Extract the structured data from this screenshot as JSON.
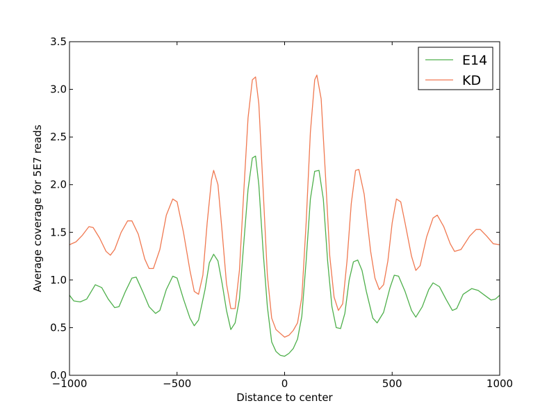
{
  "chart_data": {
    "type": "line",
    "xlabel": "Distance to center",
    "ylabel": "Average coverage for 5E7 reads",
    "xlim": [
      -1000,
      1000
    ],
    "ylim": [
      0,
      3.5
    ],
    "xticks": [
      -1000,
      -500,
      0,
      500,
      1000
    ],
    "xtick_labels": [
      "−1000",
      "−500",
      "0",
      "500",
      "1000"
    ],
    "yticks": [
      0,
      0.5,
      1,
      1.5,
      2,
      2.5,
      3,
      3.5
    ],
    "ytick_labels": [
      "0.0",
      "0.5",
      "1.0",
      "1.5",
      "2.0",
      "2.5",
      "3.0",
      "3.5"
    ],
    "grid": false,
    "legend": "top-right",
    "series": [
      {
        "name": "E14",
        "color": "#4daf4a",
        "points": [
          [
            -1000,
            0.84
          ],
          [
            -980,
            0.78
          ],
          [
            -950,
            0.77
          ],
          [
            -920,
            0.8
          ],
          [
            -880,
            0.95
          ],
          [
            -850,
            0.92
          ],
          [
            -820,
            0.8
          ],
          [
            -790,
            0.71
          ],
          [
            -770,
            0.72
          ],
          [
            -740,
            0.88
          ],
          [
            -710,
            1.02
          ],
          [
            -690,
            1.03
          ],
          [
            -660,
            0.88
          ],
          [
            -630,
            0.72
          ],
          [
            -600,
            0.65
          ],
          [
            -580,
            0.68
          ],
          [
            -550,
            0.9
          ],
          [
            -520,
            1.04
          ],
          [
            -500,
            1.02
          ],
          [
            -470,
            0.8
          ],
          [
            -440,
            0.6
          ],
          [
            -420,
            0.52
          ],
          [
            -400,
            0.58
          ],
          [
            -370,
            0.9
          ],
          [
            -350,
            1.18
          ],
          [
            -330,
            1.27
          ],
          [
            -310,
            1.2
          ],
          [
            -290,
            0.96
          ],
          [
            -270,
            0.68
          ],
          [
            -250,
            0.48
          ],
          [
            -230,
            0.55
          ],
          [
            -210,
            0.8
          ],
          [
            -190,
            1.38
          ],
          [
            -170,
            1.95
          ],
          [
            -150,
            2.28
          ],
          [
            -135,
            2.3
          ],
          [
            -120,
            2.0
          ],
          [
            -100,
            1.3
          ],
          [
            -80,
            0.72
          ],
          [
            -60,
            0.35
          ],
          [
            -40,
            0.25
          ],
          [
            -20,
            0.21
          ],
          [
            0,
            0.2
          ],
          [
            20,
            0.23
          ],
          [
            40,
            0.28
          ],
          [
            60,
            0.38
          ],
          [
            80,
            0.62
          ],
          [
            100,
            1.2
          ],
          [
            120,
            1.85
          ],
          [
            140,
            2.14
          ],
          [
            160,
            2.15
          ],
          [
            180,
            1.85
          ],
          [
            200,
            1.2
          ],
          [
            220,
            0.72
          ],
          [
            240,
            0.5
          ],
          [
            260,
            0.49
          ],
          [
            280,
            0.65
          ],
          [
            300,
            1.0
          ],
          [
            320,
            1.19
          ],
          [
            340,
            1.21
          ],
          [
            360,
            1.1
          ],
          [
            380,
            0.88
          ],
          [
            410,
            0.6
          ],
          [
            430,
            0.55
          ],
          [
            460,
            0.66
          ],
          [
            490,
            0.92
          ],
          [
            510,
            1.05
          ],
          [
            530,
            1.04
          ],
          [
            560,
            0.88
          ],
          [
            590,
            0.68
          ],
          [
            610,
            0.61
          ],
          [
            640,
            0.72
          ],
          [
            670,
            0.9
          ],
          [
            690,
            0.97
          ],
          [
            720,
            0.93
          ],
          [
            750,
            0.8
          ],
          [
            780,
            0.68
          ],
          [
            800,
            0.7
          ],
          [
            830,
            0.85
          ],
          [
            870,
            0.91
          ],
          [
            900,
            0.89
          ],
          [
            930,
            0.84
          ],
          [
            960,
            0.79
          ],
          [
            980,
            0.8
          ],
          [
            1000,
            0.84
          ]
        ]
      },
      {
        "name": "KD",
        "color": "#f07850",
        "points": [
          [
            -1000,
            1.37
          ],
          [
            -970,
            1.4
          ],
          [
            -940,
            1.47
          ],
          [
            -910,
            1.56
          ],
          [
            -890,
            1.55
          ],
          [
            -860,
            1.44
          ],
          [
            -830,
            1.3
          ],
          [
            -810,
            1.26
          ],
          [
            -790,
            1.32
          ],
          [
            -760,
            1.5
          ],
          [
            -730,
            1.62
          ],
          [
            -710,
            1.62
          ],
          [
            -680,
            1.48
          ],
          [
            -650,
            1.22
          ],
          [
            -630,
            1.12
          ],
          [
            -610,
            1.12
          ],
          [
            -580,
            1.32
          ],
          [
            -550,
            1.68
          ],
          [
            -520,
            1.85
          ],
          [
            -500,
            1.82
          ],
          [
            -470,
            1.5
          ],
          [
            -440,
            1.1
          ],
          [
            -420,
            0.88
          ],
          [
            -400,
            0.85
          ],
          [
            -380,
            1.05
          ],
          [
            -360,
            1.6
          ],
          [
            -340,
            2.05
          ],
          [
            -330,
            2.15
          ],
          [
            -310,
            2.0
          ],
          [
            -290,
            1.5
          ],
          [
            -270,
            0.96
          ],
          [
            -250,
            0.7
          ],
          [
            -230,
            0.7
          ],
          [
            -210,
            1.1
          ],
          [
            -190,
            1.92
          ],
          [
            -170,
            2.7
          ],
          [
            -150,
            3.1
          ],
          [
            -135,
            3.13
          ],
          [
            -120,
            2.85
          ],
          [
            -100,
            1.95
          ],
          [
            -80,
            1.05
          ],
          [
            -60,
            0.6
          ],
          [
            -40,
            0.48
          ],
          [
            -20,
            0.44
          ],
          [
            0,
            0.4
          ],
          [
            20,
            0.42
          ],
          [
            40,
            0.47
          ],
          [
            60,
            0.55
          ],
          [
            80,
            0.82
          ],
          [
            100,
            1.6
          ],
          [
            120,
            2.55
          ],
          [
            140,
            3.1
          ],
          [
            150,
            3.15
          ],
          [
            170,
            2.9
          ],
          [
            190,
            2.1
          ],
          [
            210,
            1.25
          ],
          [
            230,
            0.82
          ],
          [
            250,
            0.68
          ],
          [
            270,
            0.75
          ],
          [
            290,
            1.2
          ],
          [
            310,
            1.8
          ],
          [
            330,
            2.15
          ],
          [
            345,
            2.16
          ],
          [
            370,
            1.9
          ],
          [
            400,
            1.3
          ],
          [
            420,
            1.02
          ],
          [
            440,
            0.9
          ],
          [
            460,
            0.95
          ],
          [
            480,
            1.2
          ],
          [
            500,
            1.6
          ],
          [
            520,
            1.85
          ],
          [
            540,
            1.82
          ],
          [
            560,
            1.6
          ],
          [
            590,
            1.25
          ],
          [
            610,
            1.1
          ],
          [
            630,
            1.15
          ],
          [
            660,
            1.45
          ],
          [
            690,
            1.65
          ],
          [
            710,
            1.68
          ],
          [
            740,
            1.56
          ],
          [
            770,
            1.38
          ],
          [
            790,
            1.3
          ],
          [
            820,
            1.32
          ],
          [
            860,
            1.46
          ],
          [
            890,
            1.53
          ],
          [
            910,
            1.53
          ],
          [
            940,
            1.46
          ],
          [
            970,
            1.38
          ],
          [
            1000,
            1.37
          ]
        ]
      }
    ]
  }
}
